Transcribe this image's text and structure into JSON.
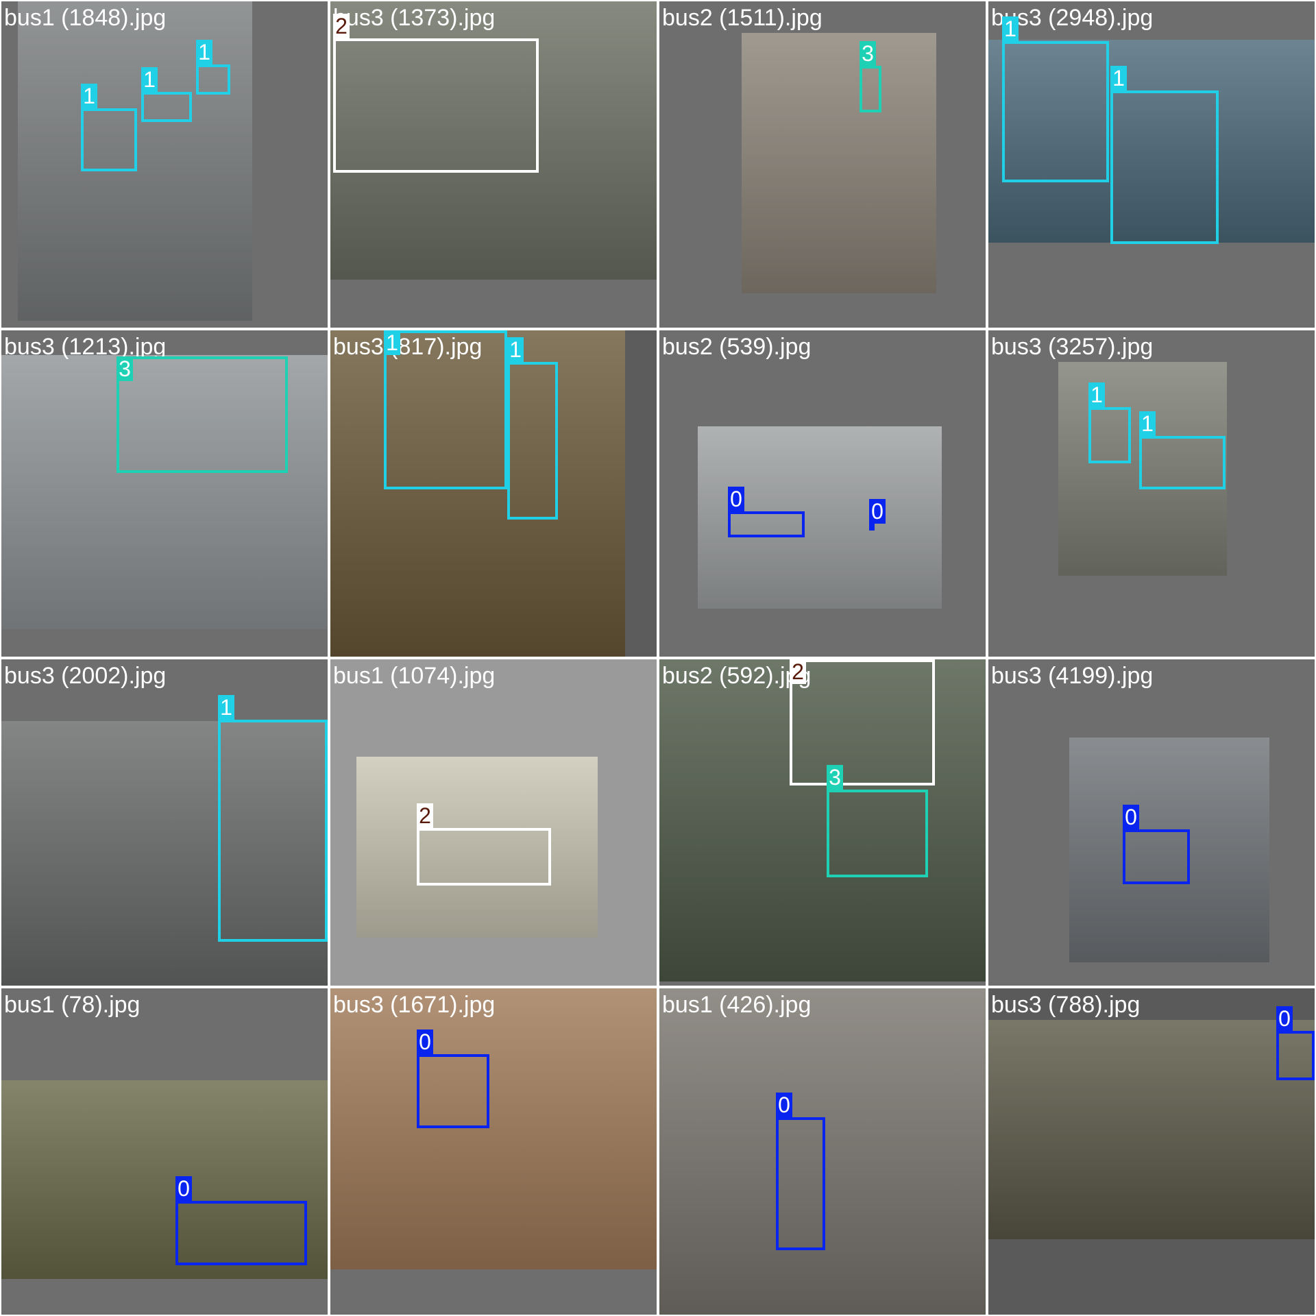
{
  "legend": {
    "classes": [
      {
        "id": "0",
        "color": "#0a24f0",
        "text": "#ffffff"
      },
      {
        "id": "1",
        "color": "#1fd0e6",
        "text": "#ffffff"
      },
      {
        "id": "2",
        "color": "#ffffff",
        "text": "#5a1a0a"
      },
      {
        "id": "3",
        "color": "#1ed0b4",
        "text": "#ffffff"
      }
    ]
  },
  "tiles": [
    {
      "filename": "bus1 (1848).jpg",
      "bg": "#6e6e6e",
      "photo_color": "#7a7d7f",
      "labels": [
        "1",
        "1",
        "1"
      ]
    },
    {
      "filename": "bus3 (1373).jpg",
      "bg": "#6e6e6e",
      "photo_color": "#6c7063",
      "labels": [
        "2"
      ]
    },
    {
      "filename": "bus2 (1511).jpg",
      "bg": "#6e6e6e",
      "photo_color": "#8b8378",
      "labels": [
        "3"
      ]
    },
    {
      "filename": "bus3 (2948).jpg",
      "bg": "#6e6e6e",
      "photo_color": "#4c6a7a",
      "labels": [
        "1",
        "1"
      ]
    },
    {
      "filename": "bus3 (1213).jpg",
      "bg": "#6e6e6e",
      "photo_color": "#8f9497",
      "labels": [
        "3"
      ]
    },
    {
      "filename": "bus3 (817).jpg",
      "bg": "#5c5c5c",
      "photo_color": "#6b5a3a",
      "labels": [
        "1",
        "1"
      ]
    },
    {
      "filename": "bus2 (539).jpg",
      "bg": "#6e6e6e",
      "photo_color": "#9ea1a3",
      "labels": [
        "0",
        "0"
      ]
    },
    {
      "filename": "bus3 (3257).jpg",
      "bg": "#6e6e6e",
      "photo_color": "#7d7f74",
      "labels": [
        "1",
        "1"
      ]
    },
    {
      "filename": "bus3 (2002).jpg",
      "bg": "#6e6e6e",
      "photo_color": "#696b6b",
      "labels": [
        "1"
      ]
    },
    {
      "filename": "bus1 (1074).jpg",
      "bg": "#9a9a9a",
      "photo_color": "#c9c6b4",
      "labels": [
        "2"
      ]
    },
    {
      "filename": "bus2 (592).jpg",
      "bg": "#6e6e6e",
      "photo_color": "#4e5a48",
      "labels": [
        "2",
        "3"
      ]
    },
    {
      "filename": "bus3 (4199).jpg",
      "bg": "#6e6e6e",
      "photo_color": "#6f7478",
      "labels": [
        "0"
      ]
    },
    {
      "filename": "bus1 (78).jpg",
      "bg": "#6e6e6e",
      "photo_color": "#6a6a4a",
      "labels": [
        "0"
      ]
    },
    {
      "filename": "bus3 (1671).jpg",
      "bg": "#6e6e6e",
      "photo_color": "#a07a58",
      "labels": [
        "0"
      ]
    },
    {
      "filename": "bus1 (426).jpg",
      "bg": "#6e6e6e",
      "photo_color": "#7a756e",
      "labels": [
        "0"
      ]
    },
    {
      "filename": "bus3 (788).jpg",
      "bg": "#5a5a5a",
      "photo_color": "#5b5a48",
      "labels": [
        "0"
      ]
    }
  ]
}
